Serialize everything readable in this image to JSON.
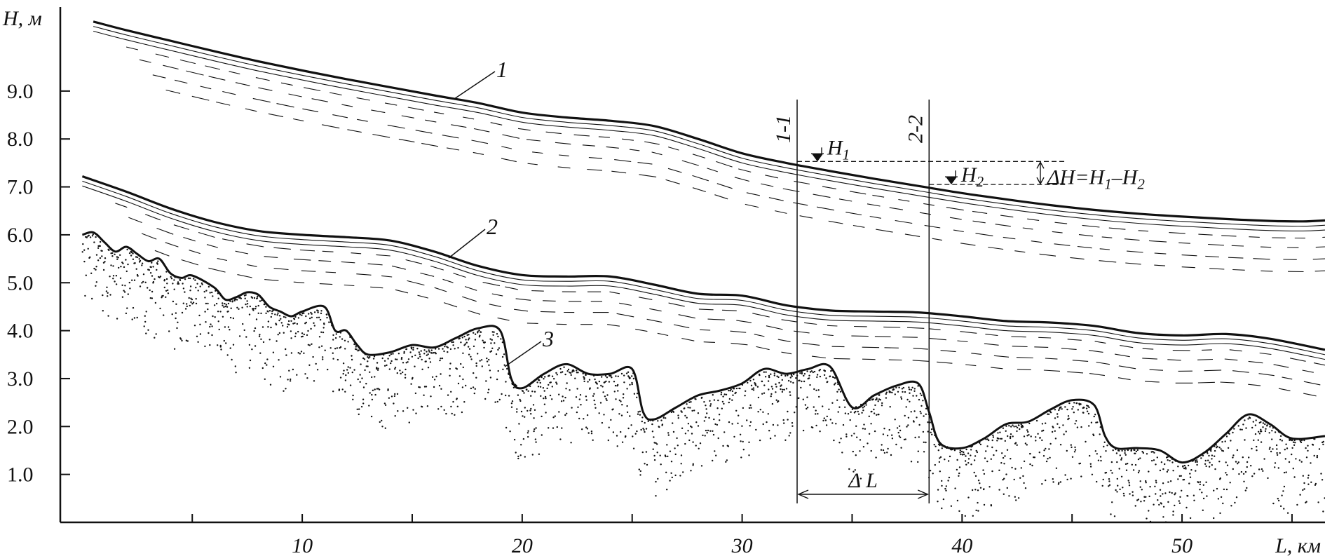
{
  "chart_data": {
    "type": "line",
    "title": "",
    "xlabel": "L, км",
    "ylabel": "H, м",
    "xlim": [
      -1,
      56.5
    ],
    "ylim": [
      0,
      10.9
    ],
    "x_ticks": [
      5,
      10,
      15,
      20,
      25,
      30,
      35,
      40,
      45,
      50,
      55
    ],
    "x_tick_labels": [
      "10",
      "20",
      "30",
      "40",
      "50"
    ],
    "x_tick_label_values": [
      10,
      20,
      30,
      40,
      50
    ],
    "y_ticks": [
      1.0,
      2.0,
      3.0,
      4.0,
      5.0,
      6.0,
      7.0,
      8.0,
      9.0
    ],
    "y_tick_labels": [
      "1.0",
      "2.0",
      "3.0",
      "4.0",
      "5.0",
      "6.0",
      "7.0",
      "8.0",
      "9.0"
    ],
    "grid": false,
    "legend": "none",
    "series": [
      {
        "label": "1",
        "x": [
          0.5,
          2,
          4,
          6,
          8,
          10,
          12,
          14,
          16,
          18,
          20,
          22,
          24,
          26,
          28,
          30,
          32,
          34,
          36,
          38,
          40,
          42,
          44,
          46,
          48,
          50,
          52,
          54,
          55.5,
          56.5
        ],
        "y": [
          10.45,
          10.27,
          10.05,
          9.83,
          9.62,
          9.43,
          9.25,
          9.08,
          8.91,
          8.75,
          8.55,
          8.45,
          8.38,
          8.27,
          8.0,
          7.7,
          7.5,
          7.33,
          7.17,
          7.02,
          6.87,
          6.74,
          6.62,
          6.52,
          6.44,
          6.38,
          6.33,
          6.29,
          6.28,
          6.3
        ]
      },
      {
        "label": "2",
        "x": [
          0,
          2,
          4,
          6,
          8,
          10,
          12,
          14,
          16,
          18,
          20,
          22,
          24,
          26,
          28,
          30,
          32,
          34,
          36,
          38,
          40,
          42,
          44,
          46,
          48,
          50,
          52,
          54,
          56.5
        ],
        "y": [
          7.22,
          6.9,
          6.55,
          6.27,
          6.08,
          6.0,
          5.95,
          5.88,
          5.65,
          5.35,
          5.16,
          5.13,
          5.13,
          4.96,
          4.77,
          4.73,
          4.53,
          4.42,
          4.4,
          4.38,
          4.3,
          4.2,
          4.17,
          4.1,
          3.95,
          3.9,
          3.93,
          3.83,
          3.6
        ]
      },
      {
        "label": "3",
        "x": [
          0,
          0.5,
          1,
          1.5,
          2,
          2.5,
          3,
          3.5,
          4,
          4.5,
          5,
          6,
          6.5,
          7,
          7.5,
          8,
          8.5,
          9,
          9.5,
          10,
          11,
          11.5,
          12,
          12.5,
          13,
          14,
          15,
          16,
          17,
          18,
          19,
          19.5,
          20,
          21,
          22,
          23,
          24,
          25,
          25.5,
          26,
          27,
          28,
          29,
          30,
          31,
          32,
          33,
          34,
          35,
          36,
          37,
          38,
          38.5,
          39,
          40,
          41,
          42,
          43,
          44,
          45,
          46,
          46.5,
          47,
          48,
          49,
          50,
          51,
          52,
          53,
          54,
          55,
          56.5
        ],
        "y": [
          6.0,
          6.05,
          5.85,
          5.65,
          5.75,
          5.6,
          5.45,
          5.5,
          5.2,
          5.1,
          5.15,
          4.9,
          4.65,
          4.7,
          4.8,
          4.75,
          4.5,
          4.4,
          4.3,
          4.4,
          4.5,
          4.0,
          4.0,
          3.7,
          3.5,
          3.55,
          3.7,
          3.65,
          3.85,
          4.05,
          4.0,
          3.0,
          2.8,
          3.1,
          3.3,
          3.1,
          3.1,
          3.2,
          2.3,
          2.15,
          2.4,
          2.65,
          2.75,
          2.9,
          3.2,
          3.1,
          3.2,
          3.25,
          2.4,
          2.65,
          2.85,
          2.9,
          2.3,
          1.65,
          1.55,
          1.75,
          2.05,
          2.1,
          2.35,
          2.55,
          2.45,
          1.8,
          1.55,
          1.55,
          1.5,
          1.25,
          1.45,
          1.85,
          2.25,
          2.05,
          1.75,
          1.8
        ]
      }
    ],
    "annotations": {
      "section_1": "1-1",
      "section_2": "2-2",
      "h1_base": "H",
      "h1_sub": "1",
      "h2_base": "H",
      "h2_sub": "2",
      "delta_h_prefix": "ΔH=H",
      "delta_h_sub1": "1",
      "delta_h_mid": "–H",
      "delta_h_sub2": "2",
      "delta_l": "Δ L"
    },
    "marker_data": {
      "section_1_x": 32.5,
      "section_2_x": 38.5,
      "h1_level": 7.53,
      "h2_level": 7.05
    }
  }
}
